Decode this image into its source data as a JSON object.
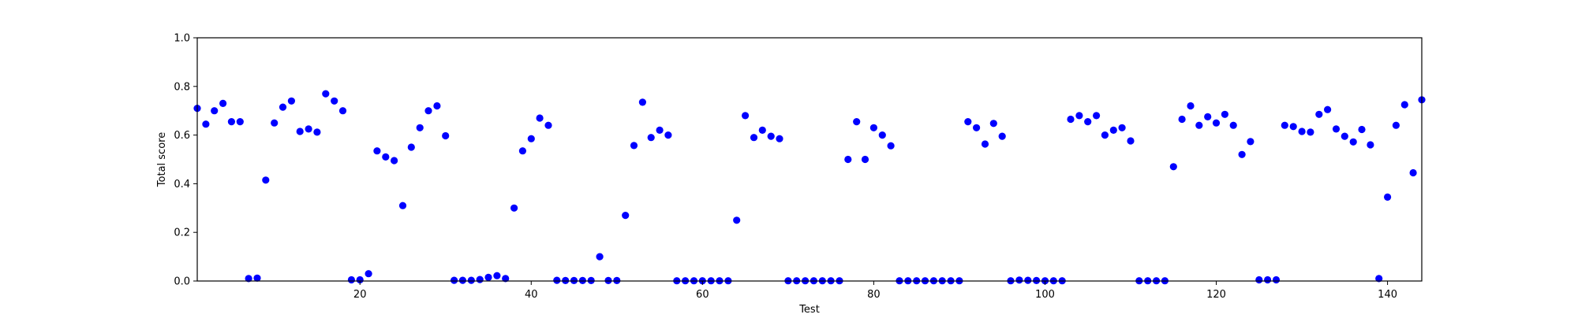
{
  "colors": {
    "marker": "#0000ff",
    "axis": "#000000",
    "background": "#ffffff"
  },
  "chart_data": {
    "type": "scatter",
    "title": "",
    "xlabel": "Test",
    "ylabel": "Total score",
    "xlim": [
      1,
      144
    ],
    "ylim": [
      0.0,
      1.0
    ],
    "x_ticks": [
      20,
      40,
      60,
      80,
      100,
      120,
      140
    ],
    "x_tick_labels": [
      "20",
      "40",
      "60",
      "80",
      "100",
      "120",
      "140"
    ],
    "y_ticks": [
      0.0,
      0.2,
      0.4,
      0.6,
      0.8,
      1.0
    ],
    "y_tick_labels": [
      "0.0",
      "0.2",
      "0.4",
      "0.6",
      "0.8",
      "1.0"
    ],
    "grid": false,
    "legend": false,
    "series": [
      {
        "marker": "circle",
        "x": [
          1,
          2,
          3,
          4,
          5,
          6,
          7,
          8,
          9,
          10,
          11,
          12,
          13,
          14,
          15,
          16,
          17,
          18,
          19,
          20,
          21,
          22,
          23,
          24,
          25,
          26,
          27,
          28,
          29,
          30,
          31,
          32,
          33,
          34,
          35,
          36,
          37,
          38,
          39,
          40,
          41,
          42,
          43,
          44,
          45,
          46,
          47,
          48,
          49,
          50,
          51,
          52,
          53,
          54,
          55,
          56,
          57,
          58,
          59,
          60,
          61,
          62,
          63,
          64,
          65,
          66,
          67,
          68,
          69,
          70,
          71,
          72,
          73,
          74,
          75,
          76,
          77,
          78,
          79,
          80,
          81,
          82,
          83,
          84,
          85,
          86,
          87,
          88,
          89,
          90,
          91,
          92,
          93,
          94,
          95,
          96,
          97,
          98,
          99,
          100,
          101,
          102,
          103,
          104,
          105,
          106,
          107,
          108,
          109,
          110,
          111,
          112,
          113,
          114,
          115,
          116,
          117,
          118,
          119,
          120,
          121,
          122,
          123,
          124,
          125,
          126,
          127,
          128,
          129,
          130,
          131,
          132,
          133,
          134,
          135,
          136,
          137,
          138,
          139,
          140,
          141,
          142,
          143,
          144
        ],
        "y": [
          0.71,
          0.645,
          0.7,
          0.73,
          0.655,
          0.655,
          0.01,
          0.012,
          0.415,
          0.65,
          0.715,
          0.74,
          0.615,
          0.625,
          0.612,
          0.77,
          0.74,
          0.7,
          0.005,
          0.005,
          0.03,
          0.535,
          0.51,
          0.495,
          0.31,
          0.55,
          0.63,
          0.7,
          0.72,
          0.597,
          0.003,
          0.003,
          0.003,
          0.006,
          0.015,
          0.022,
          0.01,
          0.3,
          0.535,
          0.585,
          0.67,
          0.64,
          0.003,
          0.002,
          0.002,
          0.002,
          0.002,
          0.1,
          0.002,
          0.002,
          0.27,
          0.557,
          0.735,
          0.59,
          0.62,
          0.6,
          0.001,
          0.001,
          0.001,
          0.001,
          0.001,
          0.001,
          0.001,
          0.25,
          0.68,
          0.59,
          0.62,
          0.595,
          0.585,
          0.001,
          0.001,
          0.001,
          0.001,
          0.001,
          0.001,
          0.001,
          0.5,
          0.655,
          0.5,
          0.63,
          0.6,
          0.556,
          0.001,
          0.001,
          0.001,
          0.001,
          0.001,
          0.001,
          0.001,
          0.001,
          0.655,
          0.63,
          0.563,
          0.648,
          0.595,
          0.001,
          0.004,
          0.003,
          0.002,
          0.001,
          0.001,
          0.001,
          0.665,
          0.68,
          0.655,
          0.68,
          0.6,
          0.62,
          0.63,
          0.576,
          0.001,
          0.001,
          0.001,
          0.001,
          0.47,
          0.665,
          0.72,
          0.64,
          0.675,
          0.65,
          0.685,
          0.64,
          0.52,
          0.573,
          0.005,
          0.005,
          0.005,
          0.64,
          0.635,
          0.615,
          0.612,
          0.685,
          0.705,
          0.625,
          0.595,
          0.572,
          0.623,
          0.56,
          0.01,
          0.345,
          0.64,
          0.725,
          0.445,
          0.745
        ]
      }
    ]
  }
}
